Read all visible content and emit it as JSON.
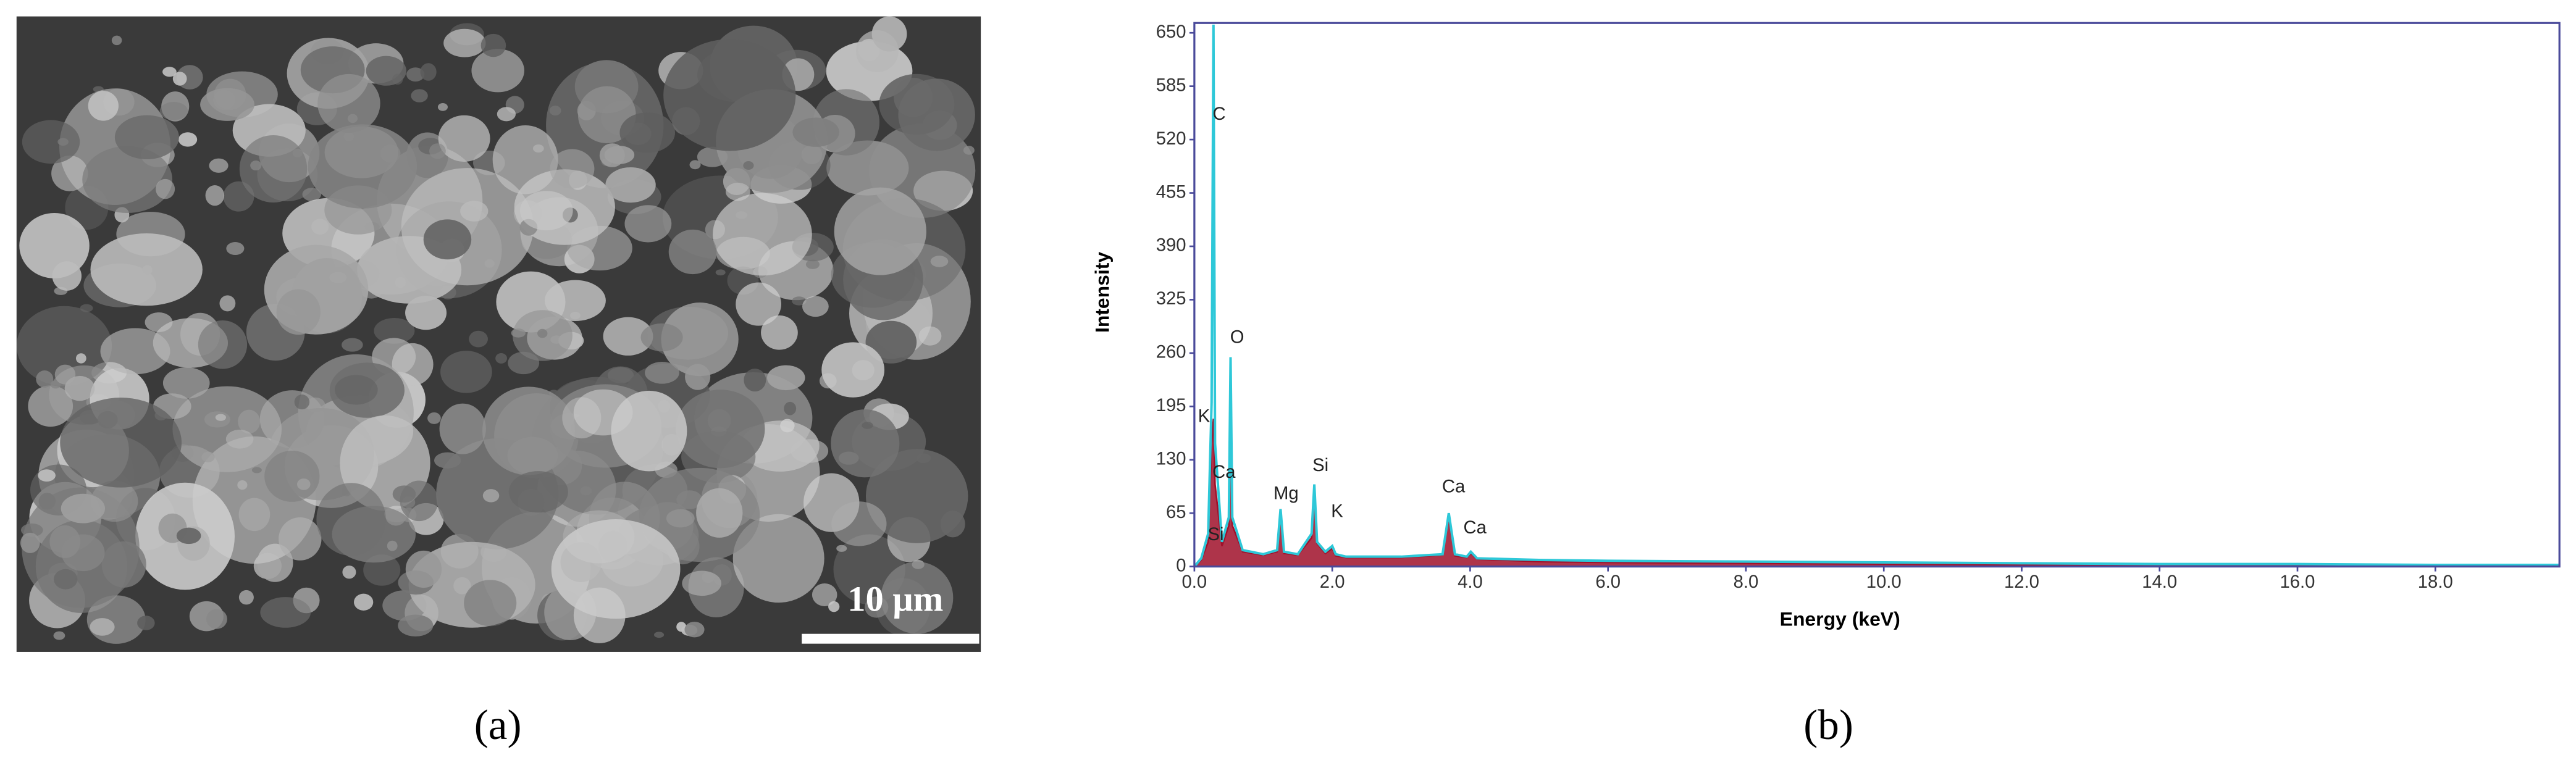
{
  "image": {
    "scale_bar_label": "10 μm",
    "caption": "(a)"
  },
  "chart_data": {
    "type": "line",
    "caption": "(b)",
    "x_label": "Energy (keV)",
    "y_label": "Intensity",
    "xlim": [
      0,
      19.8
    ],
    "ylim": [
      0,
      662
    ],
    "xticks": [
      {
        "value": 0,
        "label": "0.0"
      },
      {
        "value": 2,
        "label": "2.0"
      },
      {
        "value": 4,
        "label": "4.0"
      },
      {
        "value": 6,
        "label": "6.0"
      },
      {
        "value": 8,
        "label": "8.0"
      },
      {
        "value": 10,
        "label": "10.0"
      },
      {
        "value": 12,
        "label": "12.0"
      },
      {
        "value": 14,
        "label": "14.0"
      },
      {
        "value": 16,
        "label": "16.0"
      },
      {
        "value": 18,
        "label": "18.0"
      }
    ],
    "yticks": [
      0,
      65,
      130,
      195,
      260,
      325,
      390,
      455,
      520,
      585,
      650
    ],
    "x": [
      0,
      0.1,
      0.2,
      0.25,
      0.277,
      0.3,
      0.4,
      0.5,
      0.525,
      0.55,
      0.7,
      1.0,
      1.2,
      1.25,
      1.3,
      1.5,
      1.7,
      1.74,
      1.78,
      1.9,
      2.0,
      2.05,
      2.2,
      3.0,
      3.6,
      3.69,
      3.78,
      3.95,
      4.01,
      4.1,
      5,
      6,
      8,
      10,
      12,
      14,
      16,
      18,
      19.8
    ],
    "series": [
      {
        "color": "#a0102a",
        "fill": true,
        "values": [
          0,
          8,
          30,
          150,
          180,
          100,
          25,
          50,
          250,
          50,
          18,
          14,
          18,
          65,
          16,
          14,
          35,
          95,
          28,
          16,
          22,
          13,
          11,
          11,
          14,
          60,
          13,
          11,
          16,
          9,
          6,
          5,
          4,
          3,
          2,
          2,
          1,
          1,
          1
        ]
      },
      {
        "color": "#2ec8d8",
        "fill": false,
        "values": [
          0,
          10,
          40,
          200,
          660,
          150,
          30,
          60,
          255,
          60,
          20,
          15,
          20,
          70,
          18,
          15,
          40,
          100,
          30,
          18,
          25,
          15,
          12,
          12,
          15,
          65,
          15,
          12,
          18,
          10,
          8,
          7,
          6,
          5,
          4,
          3,
          3,
          2,
          2
        ]
      }
    ],
    "annotations": [
      {
        "label": "C",
        "x": 0.36,
        "y": 550
      },
      {
        "label": "O",
        "x": 0.62,
        "y": 278
      },
      {
        "label": "K",
        "x": 0.14,
        "y": 182
      },
      {
        "label": "Ca",
        "x": 0.43,
        "y": 114
      },
      {
        "label": "Si",
        "x": 0.31,
        "y": 38
      },
      {
        "label": "Mg",
        "x": 1.33,
        "y": 88
      },
      {
        "label": "Si",
        "x": 1.83,
        "y": 122
      },
      {
        "label": "K",
        "x": 2.07,
        "y": 66
      },
      {
        "label": "Ca",
        "x": 3.76,
        "y": 96
      },
      {
        "label": "Ca",
        "x": 4.07,
        "y": 46
      }
    ]
  }
}
